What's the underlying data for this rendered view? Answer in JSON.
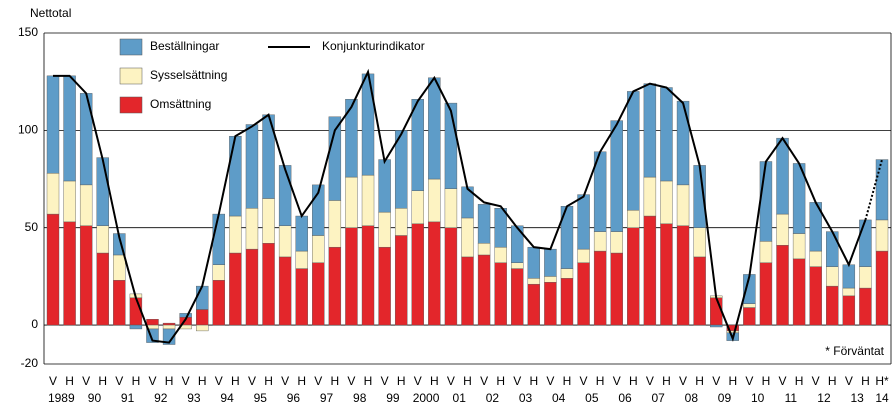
{
  "chart_data": {
    "type": "stacked_bar_line",
    "y_axis_label": "Nettotal",
    "note": "* Förväntat",
    "categories": [
      "V",
      "H",
      "V",
      "H",
      "V",
      "H",
      "V",
      "H",
      "V",
      "H",
      "V",
      "H",
      "V",
      "H",
      "V",
      "H",
      "V",
      "H",
      "V",
      "H",
      "V",
      "H",
      "V",
      "H",
      "V",
      "H",
      "V",
      "H",
      "V",
      "H",
      "V",
      "H",
      "V",
      "H",
      "V",
      "H",
      "V",
      "H",
      "V",
      "H",
      "V",
      "H",
      "V",
      "H",
      "V",
      "H",
      "V",
      "H",
      "V",
      "H",
      "H*"
    ],
    "years": [
      "1989",
      "90",
      "91",
      "92",
      "93",
      "94",
      "95",
      "96",
      "97",
      "98",
      "99",
      "2000",
      "01",
      "02",
      "03",
      "04",
      "05",
      "06",
      "07",
      "08",
      "09",
      "10",
      "11",
      "12",
      "13",
      "14"
    ],
    "ylim": [
      -20,
      150
    ],
    "yticks": [
      -20,
      0,
      50,
      100,
      150
    ],
    "grid": true,
    "series": [
      {
        "name": "Omsättning",
        "color": "#e3262b",
        "values": [
          57,
          53,
          51,
          37,
          23,
          14,
          3,
          1,
          4,
          8,
          23,
          37,
          39,
          42,
          35,
          29,
          32,
          40,
          50,
          51,
          40,
          46,
          52,
          53,
          50,
          35,
          36,
          32,
          29,
          21,
          22,
          24,
          32,
          38,
          37,
          50,
          56,
          52,
          51,
          35,
          14,
          -3,
          9,
          32,
          41,
          34,
          30,
          20,
          15,
          19,
          38
        ]
      },
      {
        "name": "Sysselsättning",
        "color": "#fdf3c2",
        "values": [
          21,
          21,
          21,
          14,
          13,
          2,
          -2,
          -2,
          -2,
          -3,
          8,
          19,
          21,
          23,
          16,
          9,
          14,
          24,
          26,
          26,
          18,
          14,
          17,
          22,
          20,
          20,
          6,
          8,
          3,
          3,
          3,
          5,
          7,
          10,
          11,
          9,
          20,
          22,
          21,
          15,
          1,
          -1,
          2,
          11,
          16,
          13,
          8,
          10,
          4,
          11,
          16
        ]
      },
      {
        "name": "Beställningar",
        "color": "#5e9cc8",
        "values": [
          50,
          54,
          47,
          35,
          11,
          -2,
          -7,
          -8,
          2,
          12,
          26,
          41,
          43,
          43,
          31,
          18,
          26,
          43,
          40,
          52,
          27,
          40,
          47,
          52,
          44,
          16,
          20,
          20,
          19,
          16,
          14,
          32,
          28,
          41,
          57,
          61,
          48,
          48,
          43,
          32,
          -1,
          -4,
          15,
          41,
          39,
          36,
          25,
          18,
          12,
          24,
          31
        ]
      }
    ],
    "line": {
      "name": "Konjunkturindikator",
      "color": "#000000",
      "dashed_last_segment": true,
      "values": [
        128,
        128,
        119,
        85,
        45,
        14,
        -8,
        -9,
        3,
        20,
        57,
        97,
        102,
        108,
        80,
        56,
        68,
        100,
        112,
        130,
        84,
        98,
        115,
        127,
        110,
        70,
        63,
        61,
        50,
        40,
        39,
        61,
        66,
        89,
        103,
        120,
        124,
        122,
        114,
        82,
        14,
        -7,
        25,
        84,
        96,
        83,
        63,
        48,
        31,
        54,
        85
      ]
    }
  }
}
